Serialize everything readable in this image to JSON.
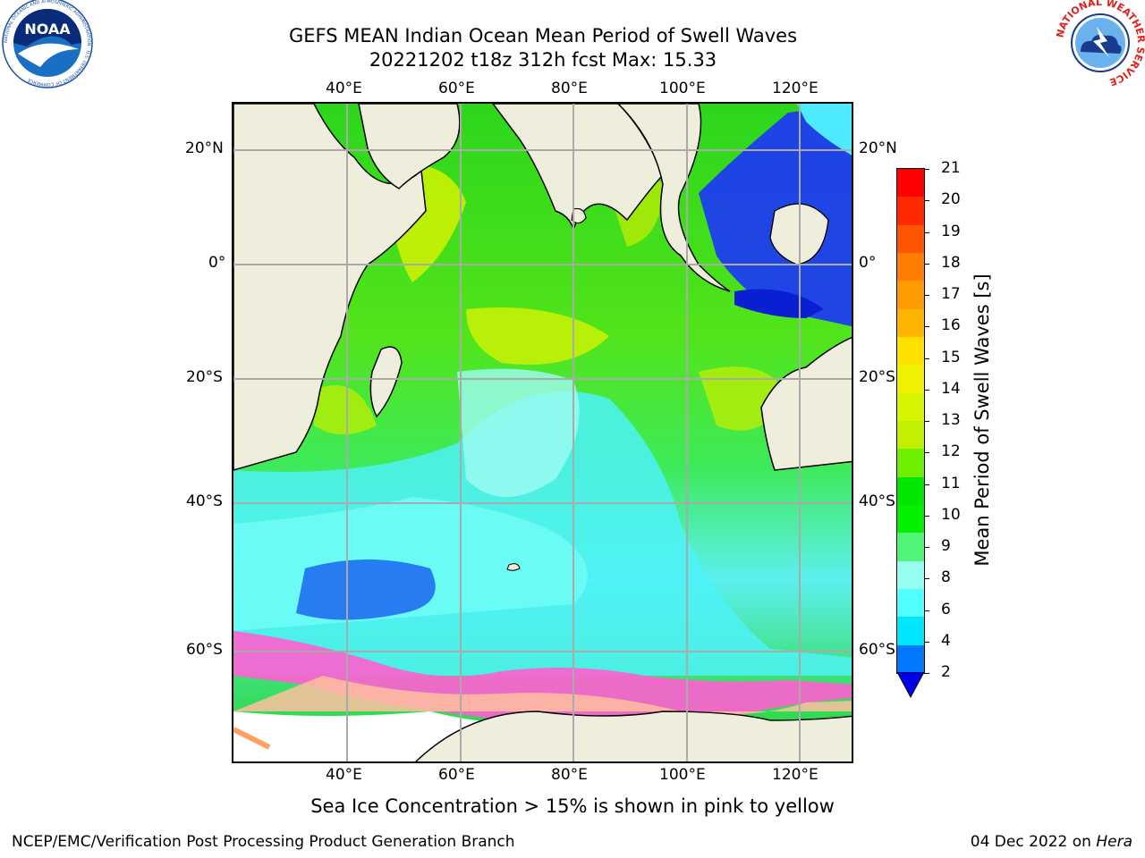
{
  "header": {
    "title_line1": "GEFS MEAN Indian Ocean Mean Period of Swell Waves",
    "title_line2": "20221202 t18z 312h fcst   Max: 15.33"
  },
  "logos": {
    "left": "NOAA",
    "left_ring": "NATIONAL OCEANIC AND ATMOSPHERIC ADMINISTRATION · U.S. DEPARTMENT OF COMMERCE",
    "right_ring": "NATIONAL WEATHER SERVICE"
  },
  "map": {
    "lon_labels": [
      "40°E",
      "60°E",
      "80°E",
      "100°E",
      "120°E"
    ],
    "lat_labels": [
      "20°N",
      "0°",
      "20°S",
      "40°S",
      "60°S"
    ],
    "lon_range": [
      20,
      130
    ],
    "lat_range": [
      -75,
      28
    ],
    "grid": true,
    "land_color": "#efeedc"
  },
  "colorbar": {
    "title": "Mean Period of Swell Waves [s]",
    "tick_labels": [
      "21",
      "20",
      "19",
      "18",
      "17",
      "16",
      "15",
      "14",
      "13",
      "12",
      "11",
      "10",
      "9",
      "8",
      "6",
      "4",
      "2"
    ],
    "colors_top_to_bottom": [
      "#ff0000",
      "#ff2a00",
      "#ff5500",
      "#ff7d00",
      "#ff9d00",
      "#ffb400",
      "#ffe100",
      "#f0f000",
      "#d7f500",
      "#c3f000",
      "#6ef000",
      "#00e600",
      "#00f000",
      "#50f578",
      "#96fff0",
      "#50ffff",
      "#00e6ff",
      "#0078ff"
    ],
    "extend_color": "#0000e6"
  },
  "note": "Sea Ice Concentration > 15% is shown in pink to yellow",
  "footer": {
    "left": "NCEP/EMC/Verification Post Processing Product Generation Branch",
    "date": "04 Dec 2022 on ",
    "machine": "Hera"
  }
}
